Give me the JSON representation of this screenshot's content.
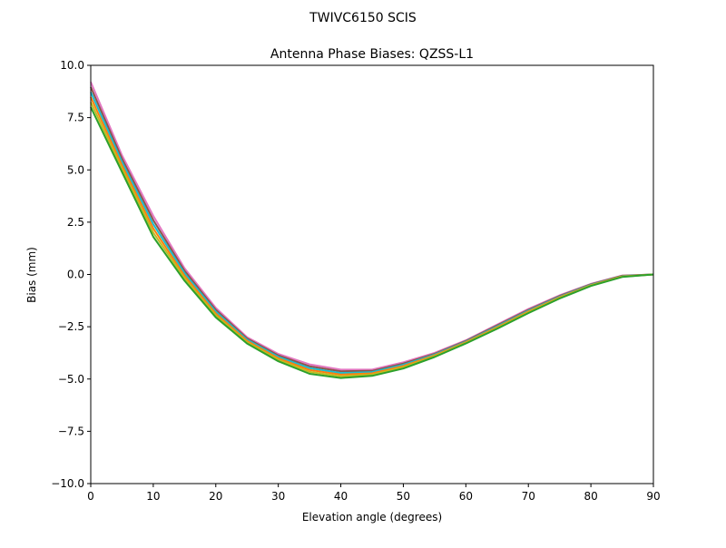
{
  "chart_data": {
    "type": "line",
    "suptitle": "TWIVC6150        SCIS",
    "title": "Antenna Phase Biases: QZSS-L1",
    "xlabel": "Elevation angle (degrees)",
    "ylabel": "Bias (mm)",
    "xlim": [
      0,
      90
    ],
    "ylim": [
      -10,
      10
    ],
    "xticks": [
      0,
      10,
      20,
      30,
      40,
      50,
      60,
      70,
      80,
      90
    ],
    "yticks": [
      -10,
      -7.5,
      -5,
      -2.5,
      0,
      2.5,
      5,
      7.5,
      10
    ],
    "ytick_labels": [
      "−10.0",
      "−7.5",
      "−5.0",
      "−2.5",
      "0.0",
      "2.5",
      "5.0",
      "7.5",
      "10.0"
    ],
    "grid": false,
    "x": [
      0,
      5,
      10,
      15,
      20,
      25,
      30,
      35,
      40,
      45,
      50,
      55,
      60,
      65,
      70,
      75,
      80,
      85,
      90
    ],
    "series": [
      {
        "color": "#e377c2",
        "values": [
          9.2,
          5.7,
          2.8,
          0.3,
          -1.6,
          -3.0,
          -3.8,
          -4.3,
          -4.55,
          -4.55,
          -4.2,
          -3.75,
          -3.15,
          -2.4,
          -1.65,
          -1.0,
          -0.45,
          -0.05,
          0
        ]
      },
      {
        "color": "#8c564b",
        "values": [
          8.96,
          5.54,
          2.6,
          0.18,
          -1.69,
          -3.06,
          -3.87,
          -4.39,
          -4.63,
          -4.61,
          -4.26,
          -3.79,
          -3.18,
          -2.44,
          -1.69,
          -1.03,
          -0.47,
          -0.06,
          0
        ]
      },
      {
        "color": "#17becf",
        "values": [
          8.72,
          5.38,
          2.4,
          0.06,
          -1.78,
          -3.12,
          -3.94,
          -4.48,
          -4.71,
          -4.67,
          -4.32,
          -3.83,
          -3.21,
          -2.48,
          -1.73,
          -1.06,
          -0.49,
          -0.08,
          0
        ]
      },
      {
        "color": "#ff7f0e",
        "values": [
          8.48,
          5.22,
          2.2,
          -0.06,
          -1.87,
          -3.18,
          -4.01,
          -4.57,
          -4.79,
          -4.73,
          -4.38,
          -3.87,
          -3.24,
          -2.52,
          -1.77,
          -1.09,
          -0.51,
          -0.09,
          0
        ]
      },
      {
        "color": "#bcbd22",
        "values": [
          8.24,
          5.06,
          2.0,
          -0.18,
          -1.96,
          -3.24,
          -4.08,
          -4.66,
          -4.87,
          -4.79,
          -4.44,
          -3.91,
          -3.27,
          -2.56,
          -1.81,
          -1.12,
          -0.53,
          -0.11,
          0
        ]
      },
      {
        "color": "#2ca02c",
        "values": [
          8.0,
          4.9,
          1.8,
          -0.3,
          -2.05,
          -3.3,
          -4.15,
          -4.75,
          -4.95,
          -4.85,
          -4.5,
          -3.95,
          -3.3,
          -2.6,
          -1.85,
          -1.15,
          -0.55,
          -0.12,
          0
        ]
      }
    ]
  }
}
